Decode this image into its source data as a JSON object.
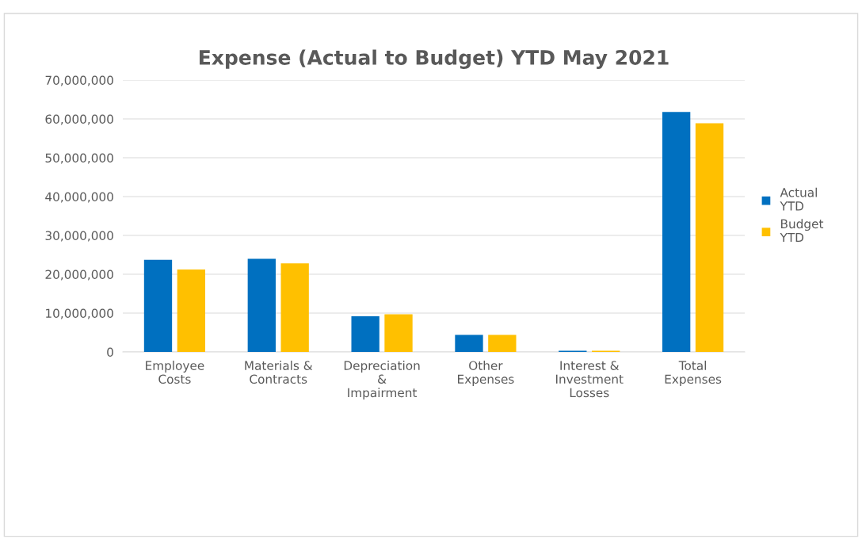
{
  "chart_data": {
    "type": "bar",
    "title": "Expense (Actual to Budget) YTD May 2021",
    "categories": [
      "Employee\nCosts",
      "Materials &\nContracts",
      "Depreciation\n&\nImpairment",
      "Other\nExpenses",
      "Interest &\nInvestment\nLosses",
      "Total\nExpenses"
    ],
    "series": [
      {
        "name": "Actual\nYTD",
        "color": "#0070c0",
        "values": [
          23700000,
          24000000,
          9200000,
          4400000,
          300000,
          61800000
        ]
      },
      {
        "name": "Budget\nYTD",
        "color": "#ffc000",
        "values": [
          21200000,
          22800000,
          9700000,
          4400000,
          300000,
          58900000
        ]
      }
    ],
    "ylim": [
      0,
      70000000
    ],
    "yticks": [
      {
        "value": 0,
        "label": "0"
      },
      {
        "value": 10000000,
        "label": "10,000,000"
      },
      {
        "value": 20000000,
        "label": "20,000,000"
      },
      {
        "value": 30000000,
        "label": "30,000,000"
      },
      {
        "value": 40000000,
        "label": "40,000,000"
      },
      {
        "value": 50000000,
        "label": "50,000,000"
      },
      {
        "value": 60000000,
        "label": "60,000,000"
      },
      {
        "value": 70000000,
        "label": "70,000,000"
      }
    ],
    "grid": "y",
    "legend": "right"
  }
}
